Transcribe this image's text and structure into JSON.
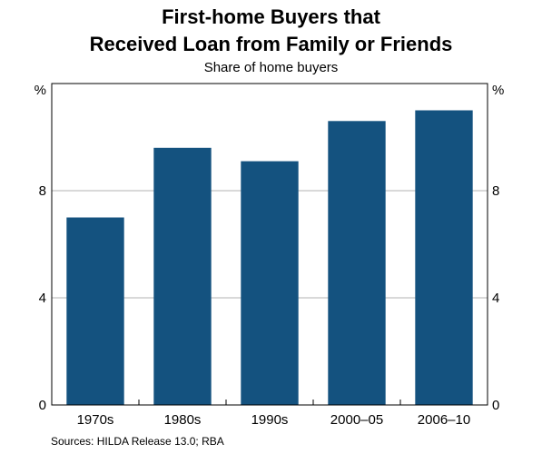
{
  "chart_data": {
    "type": "bar",
    "title": [
      "First-home Buyers that",
      "Received Loan from Family or Friends"
    ],
    "subtitle": "Share of home buyers",
    "categories": [
      "1970s",
      "1980s",
      "1990s",
      "2000–05",
      "2006–10"
    ],
    "values": [
      7.0,
      9.6,
      9.1,
      10.6,
      11.0
    ],
    "ylim": [
      0,
      12
    ],
    "yticks": [
      0,
      4,
      8
    ],
    "yticks_labels": [
      "0",
      "4",
      "8"
    ],
    "yunit_left": "%",
    "yunit_right": "%",
    "grid": true,
    "bar_color": "#14527f",
    "source": "Sources:  HILDA Release 13.0; RBA"
  }
}
